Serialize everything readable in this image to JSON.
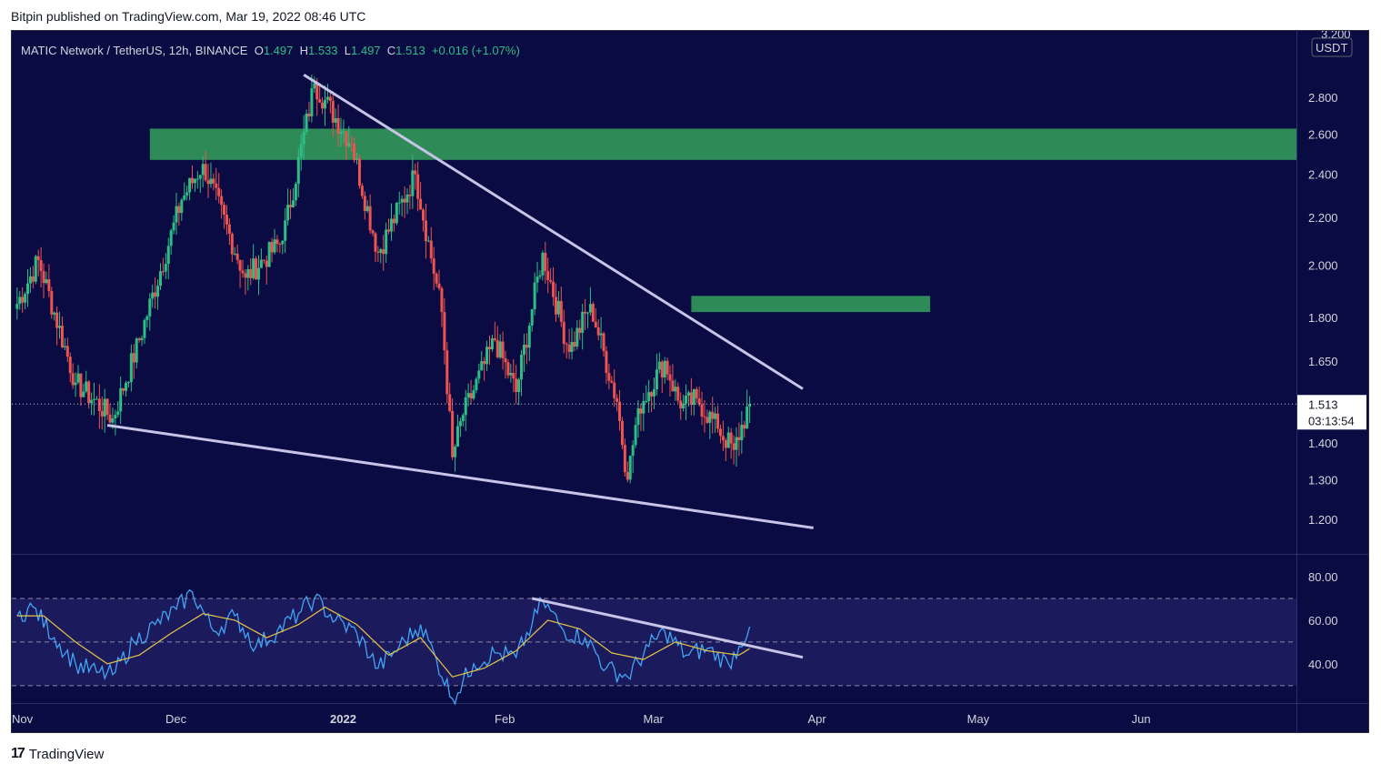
{
  "header": {
    "published": "Bitpin published on TradingView.com, Mar 19, 2022 08:46 UTC"
  },
  "footer": {
    "brand": "TradingView",
    "logo_icon": "tradingview-logo-icon"
  },
  "colors": {
    "background": "#0a0b42",
    "up_candle": "#2ebd85",
    "down_candle": "#ef5350",
    "zone": "#2e8b57",
    "trendline": "#c7c4e8",
    "rsi_line": "#42a5f5",
    "rsi_ma": "#e8c547",
    "rsi_band": "#1b1a5c"
  },
  "legend": {
    "symbol": "MATIC Network / TetherUS, 12h, BINANCE",
    "o_label": "O",
    "o_value": "1.497",
    "h_label": "H",
    "h_value": "1.533",
    "l_label": "L",
    "l_value": "1.497",
    "c_label": "C",
    "c_value": "1.513",
    "change": "+0.016 (+1.07%)"
  },
  "price_scale": {
    "currency": "USDT",
    "top_partial": "3.200",
    "ticks": [
      "2.800",
      "2.600",
      "2.400",
      "2.200",
      "2.000",
      "1.800",
      "1.650",
      "1.400",
      "1.300",
      "1.200"
    ],
    "current_price": "1.513",
    "countdown": "03:13:54"
  },
  "rsi_scale": {
    "ticks": [
      "80.00",
      "60.00",
      "40.00"
    ]
  },
  "time_axis": {
    "ticks": [
      "Nov",
      "Dec",
      "2022",
      "Feb",
      "Mar",
      "Apr",
      "May",
      "Jun"
    ]
  },
  "chart_data": [
    {
      "type": "candlestick",
      "title": "MATIC Network / TetherUS, 12h, BINANCE",
      "y_scale": "log",
      "ylim": [
        1.12,
        3.2
      ],
      "x_range": [
        "2021-10-31",
        "2022-06-30"
      ],
      "last_candle": {
        "open": 1.497,
        "high": 1.533,
        "low": 1.497,
        "close": 1.513,
        "change": 0.016,
        "change_pct": 1.07
      },
      "swing_points": [
        {
          "date": "2021-11-01",
          "price": 1.85
        },
        {
          "date": "2021-11-05",
          "price": 2.02
        },
        {
          "date": "2021-11-12",
          "price": 1.58
        },
        {
          "date": "2021-11-19",
          "price": 1.47
        },
        {
          "date": "2021-11-24",
          "price": 1.72
        },
        {
          "date": "2021-12-02",
          "price": 2.28
        },
        {
          "date": "2021-12-06",
          "price": 2.45
        },
        {
          "date": "2021-12-14",
          "price": 1.95
        },
        {
          "date": "2021-12-21",
          "price": 2.1
        },
        {
          "date": "2021-12-27",
          "price": 2.88
        },
        {
          "date": "2022-01-03",
          "price": 2.55
        },
        {
          "date": "2022-01-08",
          "price": 2.05
        },
        {
          "date": "2022-01-15",
          "price": 2.4
        },
        {
          "date": "2022-01-20",
          "price": 1.82
        },
        {
          "date": "2022-01-22",
          "price": 1.36
        },
        {
          "date": "2022-01-24",
          "price": 1.48
        },
        {
          "date": "2022-01-30",
          "price": 1.72
        },
        {
          "date": "2022-02-03",
          "price": 1.55
        },
        {
          "date": "2022-02-08",
          "price": 2.05
        },
        {
          "date": "2022-02-13",
          "price": 1.68
        },
        {
          "date": "2022-02-17",
          "price": 1.85
        },
        {
          "date": "2022-02-22",
          "price": 1.52
        },
        {
          "date": "2022-02-24",
          "price": 1.3
        },
        {
          "date": "2022-02-26",
          "price": 1.5
        },
        {
          "date": "2022-03-03",
          "price": 1.65
        },
        {
          "date": "2022-03-06",
          "price": 1.5
        },
        {
          "date": "2022-03-09",
          "price": 1.53
        },
        {
          "date": "2022-03-13",
          "price": 1.44
        },
        {
          "date": "2022-03-16",
          "price": 1.38
        },
        {
          "date": "2022-03-19",
          "price": 1.513
        }
      ],
      "annotations": {
        "resistance_zones": [
          {
            "from_date": "2021-11-26",
            "to_date": "2022-06-30",
            "low": 2.47,
            "high": 2.63
          },
          {
            "from_date": "2022-03-08",
            "to_date": "2022-04-22",
            "low": 1.82,
            "high": 1.88
          }
        ],
        "trendlines": [
          {
            "name": "upper",
            "from": {
              "date": "2021-12-25",
              "price": 2.93
            },
            "to": {
              "date": "2022-03-29",
              "price": 1.56
            }
          },
          {
            "name": "lower",
            "from": {
              "date": "2021-11-18",
              "price": 1.45
            },
            "to": {
              "date": "2022-03-31",
              "price": 1.18
            }
          }
        ]
      }
    },
    {
      "type": "line",
      "title": "RSI",
      "ylim": [
        22,
        90
      ],
      "bands": {
        "upper": 70,
        "middle": 50,
        "lower": 30
      },
      "series": [
        {
          "role": "rsi",
          "points": [
            {
              "date": "2021-11-01",
              "value": 62
            },
            {
              "date": "2021-11-04",
              "value": 66
            },
            {
              "date": "2021-11-08",
              "value": 52
            },
            {
              "date": "2021-11-12",
              "value": 40
            },
            {
              "date": "2021-11-16",
              "value": 36
            },
            {
              "date": "2021-11-19",
              "value": 35
            },
            {
              "date": "2021-11-23",
              "value": 50
            },
            {
              "date": "2021-11-27",
              "value": 58
            },
            {
              "date": "2021-12-01",
              "value": 65
            },
            {
              "date": "2021-12-04",
              "value": 73
            },
            {
              "date": "2021-12-08",
              "value": 55
            },
            {
              "date": "2021-12-12",
              "value": 62
            },
            {
              "date": "2021-12-16",
              "value": 48
            },
            {
              "date": "2021-12-20",
              "value": 55
            },
            {
              "date": "2021-12-24",
              "value": 63
            },
            {
              "date": "2021-12-27",
              "value": 70
            },
            {
              "date": "2021-12-31",
              "value": 60
            },
            {
              "date": "2022-01-04",
              "value": 54
            },
            {
              "date": "2022-01-08",
              "value": 38
            },
            {
              "date": "2022-01-12",
              "value": 48
            },
            {
              "date": "2022-01-16",
              "value": 58
            },
            {
              "date": "2022-01-19",
              "value": 42
            },
            {
              "date": "2022-01-22",
              "value": 24
            },
            {
              "date": "2022-01-26",
              "value": 40
            },
            {
              "date": "2022-01-30",
              "value": 45
            },
            {
              "date": "2022-02-03",
              "value": 43
            },
            {
              "date": "2022-02-06",
              "value": 58
            },
            {
              "date": "2022-02-08",
              "value": 69
            },
            {
              "date": "2022-02-12",
              "value": 55
            },
            {
              "date": "2022-02-16",
              "value": 52
            },
            {
              "date": "2022-02-20",
              "value": 38
            },
            {
              "date": "2022-02-24",
              "value": 34
            },
            {
              "date": "2022-02-28",
              "value": 48
            },
            {
              "date": "2022-03-03",
              "value": 55
            },
            {
              "date": "2022-03-07",
              "value": 44
            },
            {
              "date": "2022-03-11",
              "value": 47
            },
            {
              "date": "2022-03-15",
              "value": 40
            },
            {
              "date": "2022-03-17",
              "value": 48
            },
            {
              "date": "2022-03-19",
              "value": 57
            }
          ]
        },
        {
          "role": "rsi-moving-average",
          "points": [
            {
              "date": "2021-11-01",
              "value": 62
            },
            {
              "date": "2021-11-06",
              "value": 62
            },
            {
              "date": "2021-11-12",
              "value": 50
            },
            {
              "date": "2021-11-18",
              "value": 40
            },
            {
              "date": "2021-11-24",
              "value": 44
            },
            {
              "date": "2021-11-30",
              "value": 54
            },
            {
              "date": "2021-12-06",
              "value": 63
            },
            {
              "date": "2021-12-12",
              "value": 60
            },
            {
              "date": "2021-12-18",
              "value": 52
            },
            {
              "date": "2021-12-24",
              "value": 58
            },
            {
              "date": "2021-12-29",
              "value": 66
            },
            {
              "date": "2022-01-04",
              "value": 58
            },
            {
              "date": "2022-01-10",
              "value": 44
            },
            {
              "date": "2022-01-16",
              "value": 52
            },
            {
              "date": "2022-01-22",
              "value": 34
            },
            {
              "date": "2022-01-28",
              "value": 38
            },
            {
              "date": "2022-02-03",
              "value": 46
            },
            {
              "date": "2022-02-09",
              "value": 60
            },
            {
              "date": "2022-02-15",
              "value": 56
            },
            {
              "date": "2022-02-21",
              "value": 45
            },
            {
              "date": "2022-02-27",
              "value": 42
            },
            {
              "date": "2022-03-05",
              "value": 50
            },
            {
              "date": "2022-03-11",
              "value": 46
            },
            {
              "date": "2022-03-17",
              "value": 44
            },
            {
              "date": "2022-03-19",
              "value": 47
            }
          ]
        }
      ],
      "annotations": {
        "trendlines": [
          {
            "name": "rsi-divergence",
            "from": {
              "date": "2022-02-06",
              "value": 70
            },
            "to": {
              "date": "2022-03-29",
              "value": 43
            }
          }
        ]
      }
    }
  ]
}
